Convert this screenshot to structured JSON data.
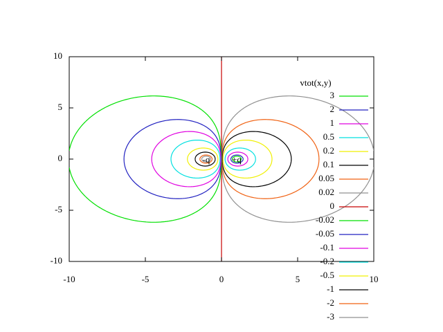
{
  "chart_data": {
    "type": "contour",
    "legend_title": "vtot(x,y)",
    "xlim": [
      -10,
      10
    ],
    "ylim": [
      -10,
      10
    ],
    "xticks": [
      -10,
      -5,
      0,
      5,
      10
    ],
    "yticks": [
      -10,
      -5,
      0,
      5,
      10
    ],
    "annotations": [
      {
        "text": "+q",
        "x": 1,
        "y": 0
      },
      {
        "text": "-q",
        "x": -1,
        "y": 0
      }
    ],
    "series": [
      {
        "name": "3",
        "value": 3,
        "color": "#00e000"
      },
      {
        "name": "2",
        "value": 2,
        "color": "#2020c0"
      },
      {
        "name": "1",
        "value": 1,
        "color": "#e000e0"
      },
      {
        "name": "0.5",
        "value": 0.5,
        "color": "#00e0e0"
      },
      {
        "name": "0.2",
        "value": 0.2,
        "color": "#f0f000"
      },
      {
        "name": "0.1",
        "value": 0.1,
        "color": "#000000"
      },
      {
        "name": "0.05",
        "value": 0.05,
        "color": "#f06010"
      },
      {
        "name": "0.02",
        "value": 0.02,
        "color": "#909090"
      },
      {
        "name": "0",
        "value": 0,
        "color": "#c80000"
      },
      {
        "name": "-0.02",
        "value": -0.02,
        "color": "#00e000"
      },
      {
        "name": "-0.05",
        "value": -0.05,
        "color": "#2020c0"
      },
      {
        "name": "-0.1",
        "value": -0.1,
        "color": "#e000e0"
      },
      {
        "name": "-0.2",
        "value": -0.2,
        "color": "#00e0e0"
      },
      {
        "name": "-0.5",
        "value": -0.5,
        "color": "#f0f000"
      },
      {
        "name": "-1",
        "value": -1,
        "color": "#000000"
      },
      {
        "name": "-2",
        "value": -2,
        "color": "#f06010"
      },
      {
        "name": "-3",
        "value": -3,
        "color": "#909090"
      }
    ]
  }
}
